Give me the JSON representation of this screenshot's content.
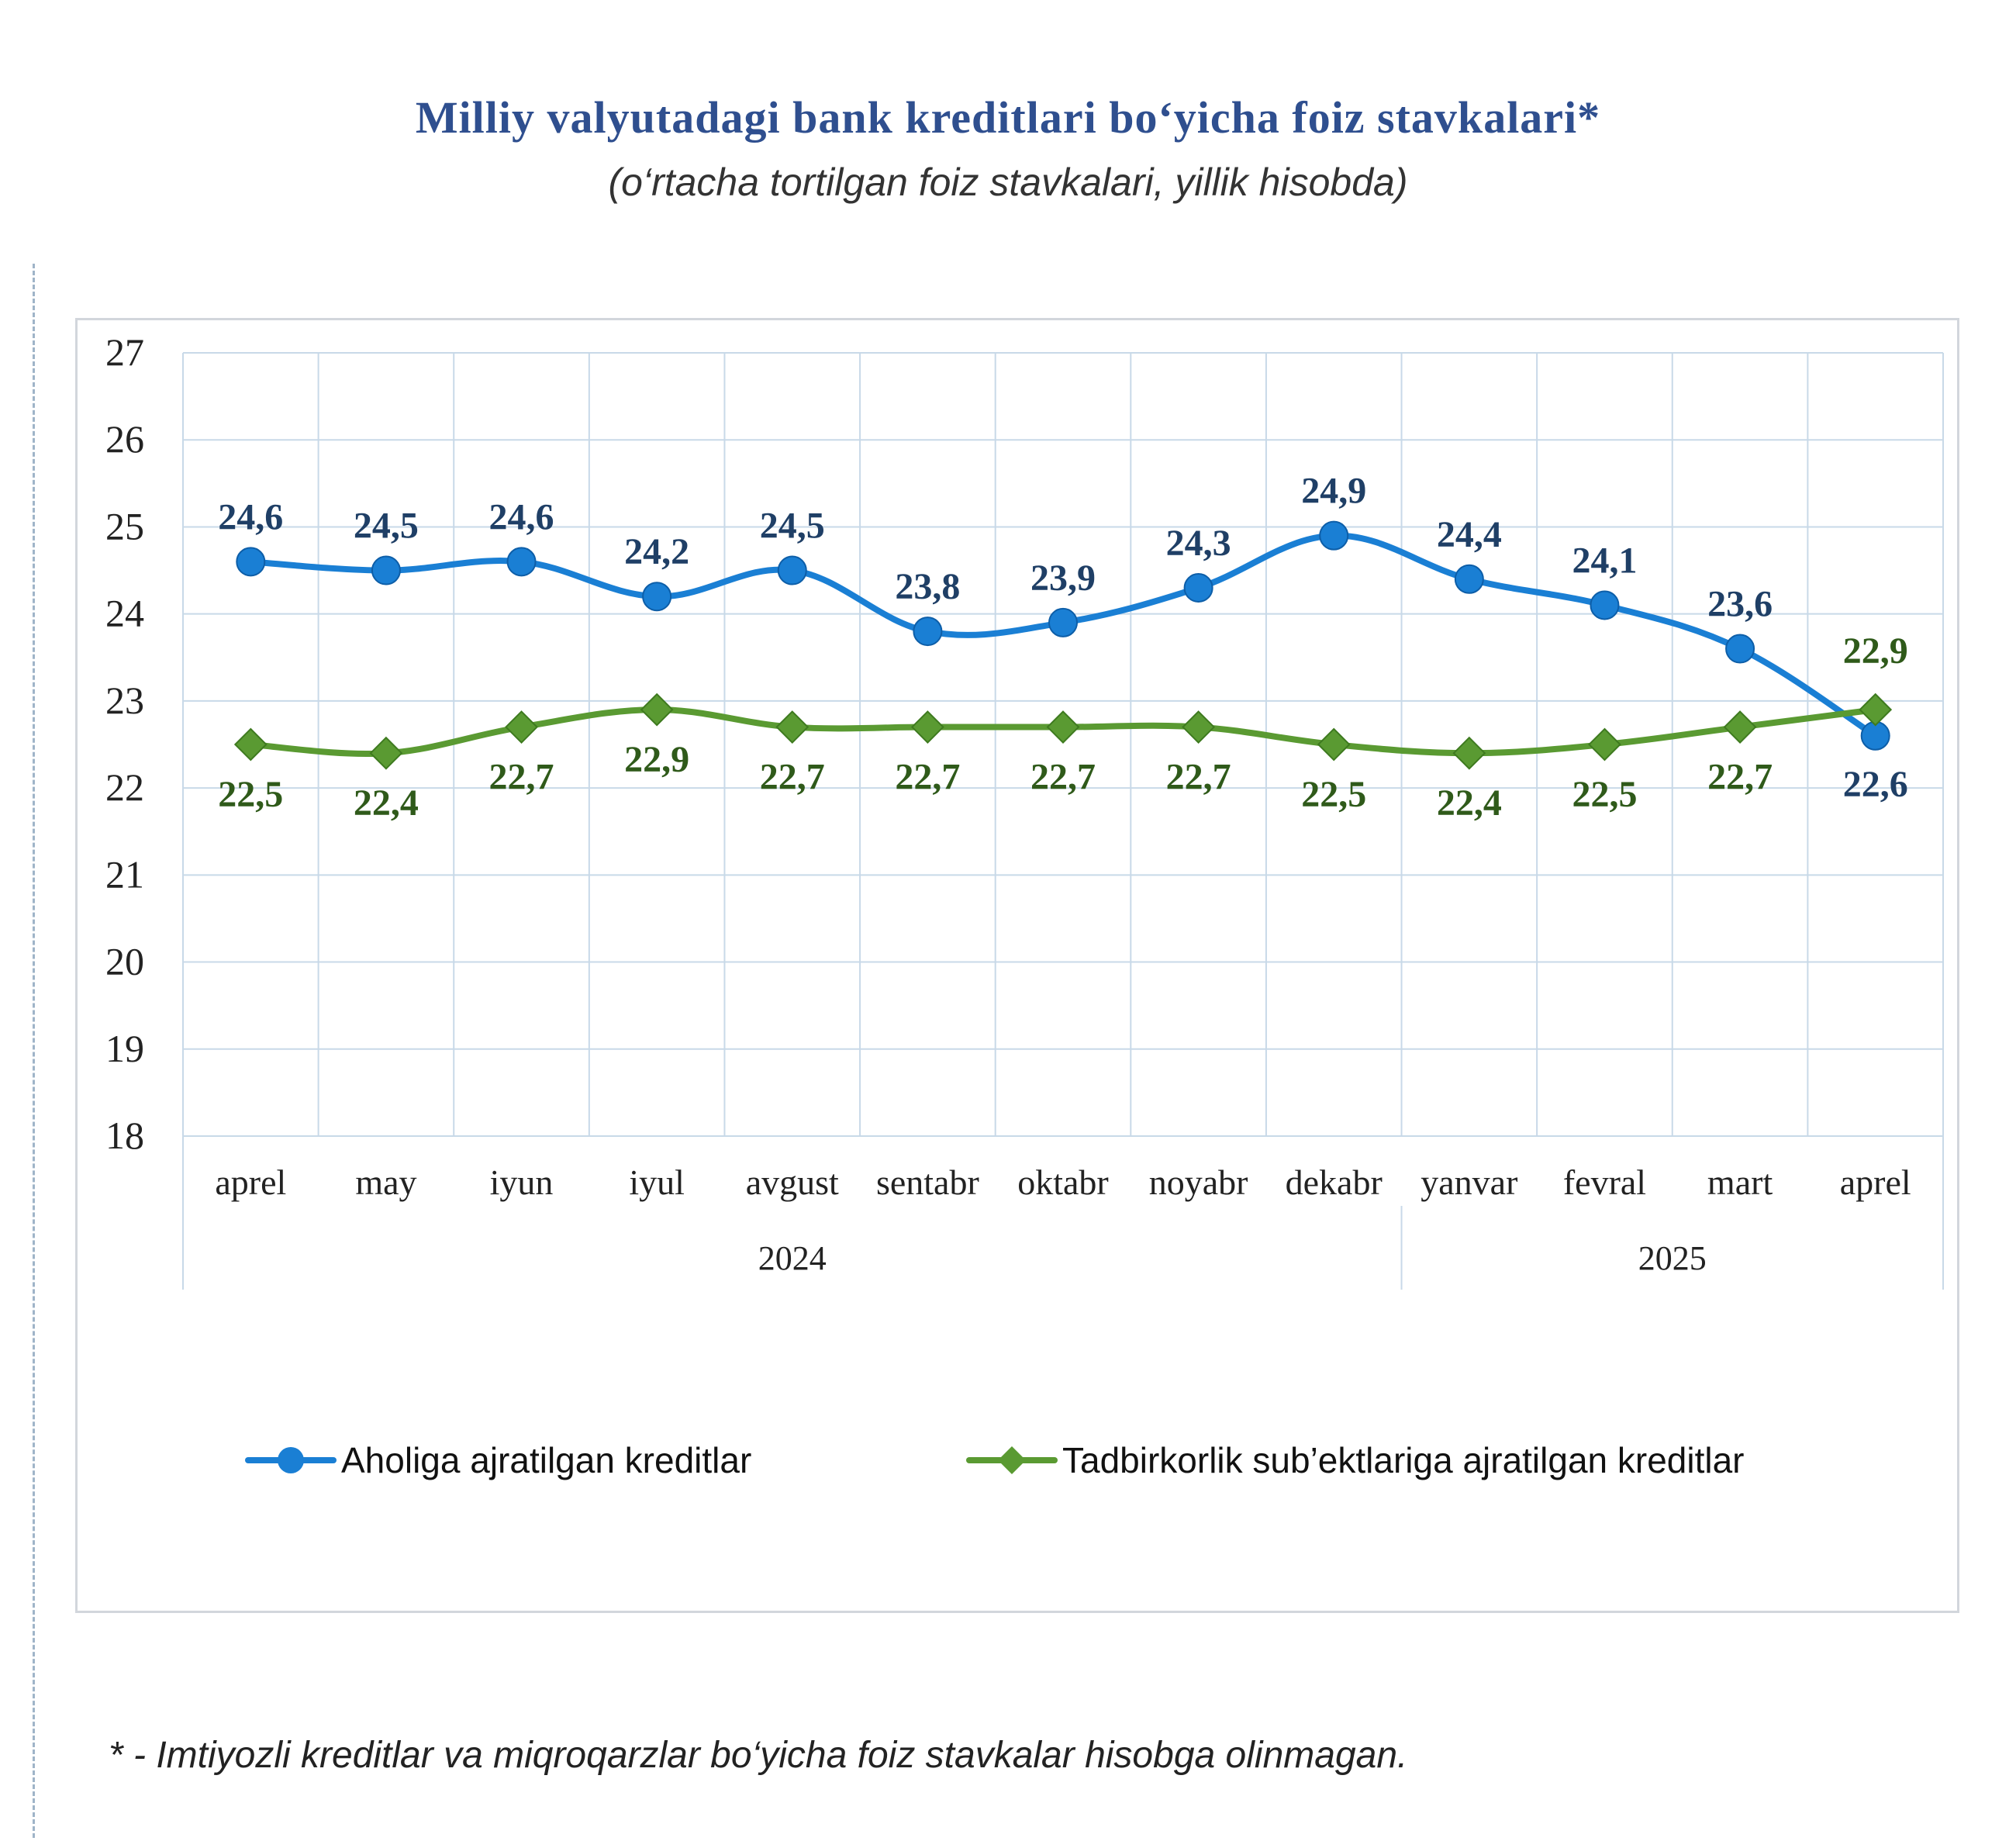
{
  "title": "Milliy valyutadagi bank kreditlari bo‘yicha foiz stavkalari*",
  "subtitle": "(o‘rtacha tortilgan foiz stavkalari, yillik hisobda)",
  "footnote": "* - Imtiyozli kreditlar va miqroqarzlar bo‘yicha foiz stavkalar hisobga olinmagan.",
  "colors": {
    "aholi": "#1a7fd4",
    "aholi_label": "#1f3f66",
    "tadbirkor": "#5a9a32",
    "tadbirkor_label": "#2f5a1a",
    "grid": "#c8d9e8",
    "axis_text": "#222222"
  },
  "chart_data": {
    "type": "line",
    "categories": [
      "aprel",
      "may",
      "iyun",
      "iyul",
      "avgust",
      "sentabr",
      "oktabr",
      "noyabr",
      "dekabr",
      "yanvar",
      "fevral",
      "mart",
      "aprel"
    ],
    "year_groups": [
      {
        "label": "2024",
        "start": 0,
        "end": 8
      },
      {
        "label": "2025",
        "start": 9,
        "end": 12
      }
    ],
    "ylim": [
      18,
      27
    ],
    "yticks": [
      18,
      19,
      20,
      21,
      22,
      23,
      24,
      25,
      26,
      27
    ],
    "grid": true,
    "legend_position": "bottom",
    "series": [
      {
        "name": "Aholiga ajratilgan kreditlar",
        "marker": "circle",
        "values": [
          24.6,
          24.5,
          24.6,
          24.2,
          24.5,
          23.8,
          23.9,
          24.3,
          24.9,
          24.4,
          24.1,
          23.6,
          22.6
        ],
        "labels": [
          "24,6",
          "24,5",
          "24,6",
          "24,2",
          "24,5",
          "23,8",
          "23,9",
          "24,3",
          "24,9",
          "24,4",
          "24,1",
          "23,6",
          "22,6"
        ]
      },
      {
        "name": "Tadbirkorlik sub’ektlariga ajratilgan kreditlar",
        "marker": "diamond",
        "values": [
          22.5,
          22.4,
          22.7,
          22.9,
          22.7,
          22.7,
          22.7,
          22.7,
          22.5,
          22.4,
          22.5,
          22.7,
          22.9
        ],
        "labels": [
          "22,5",
          "22,4",
          "22,7",
          "22,9",
          "22,7",
          "22,7",
          "22,7",
          "22,7",
          "22,5",
          "22,4",
          "22,5",
          "22,7",
          "22,9"
        ]
      }
    ]
  }
}
